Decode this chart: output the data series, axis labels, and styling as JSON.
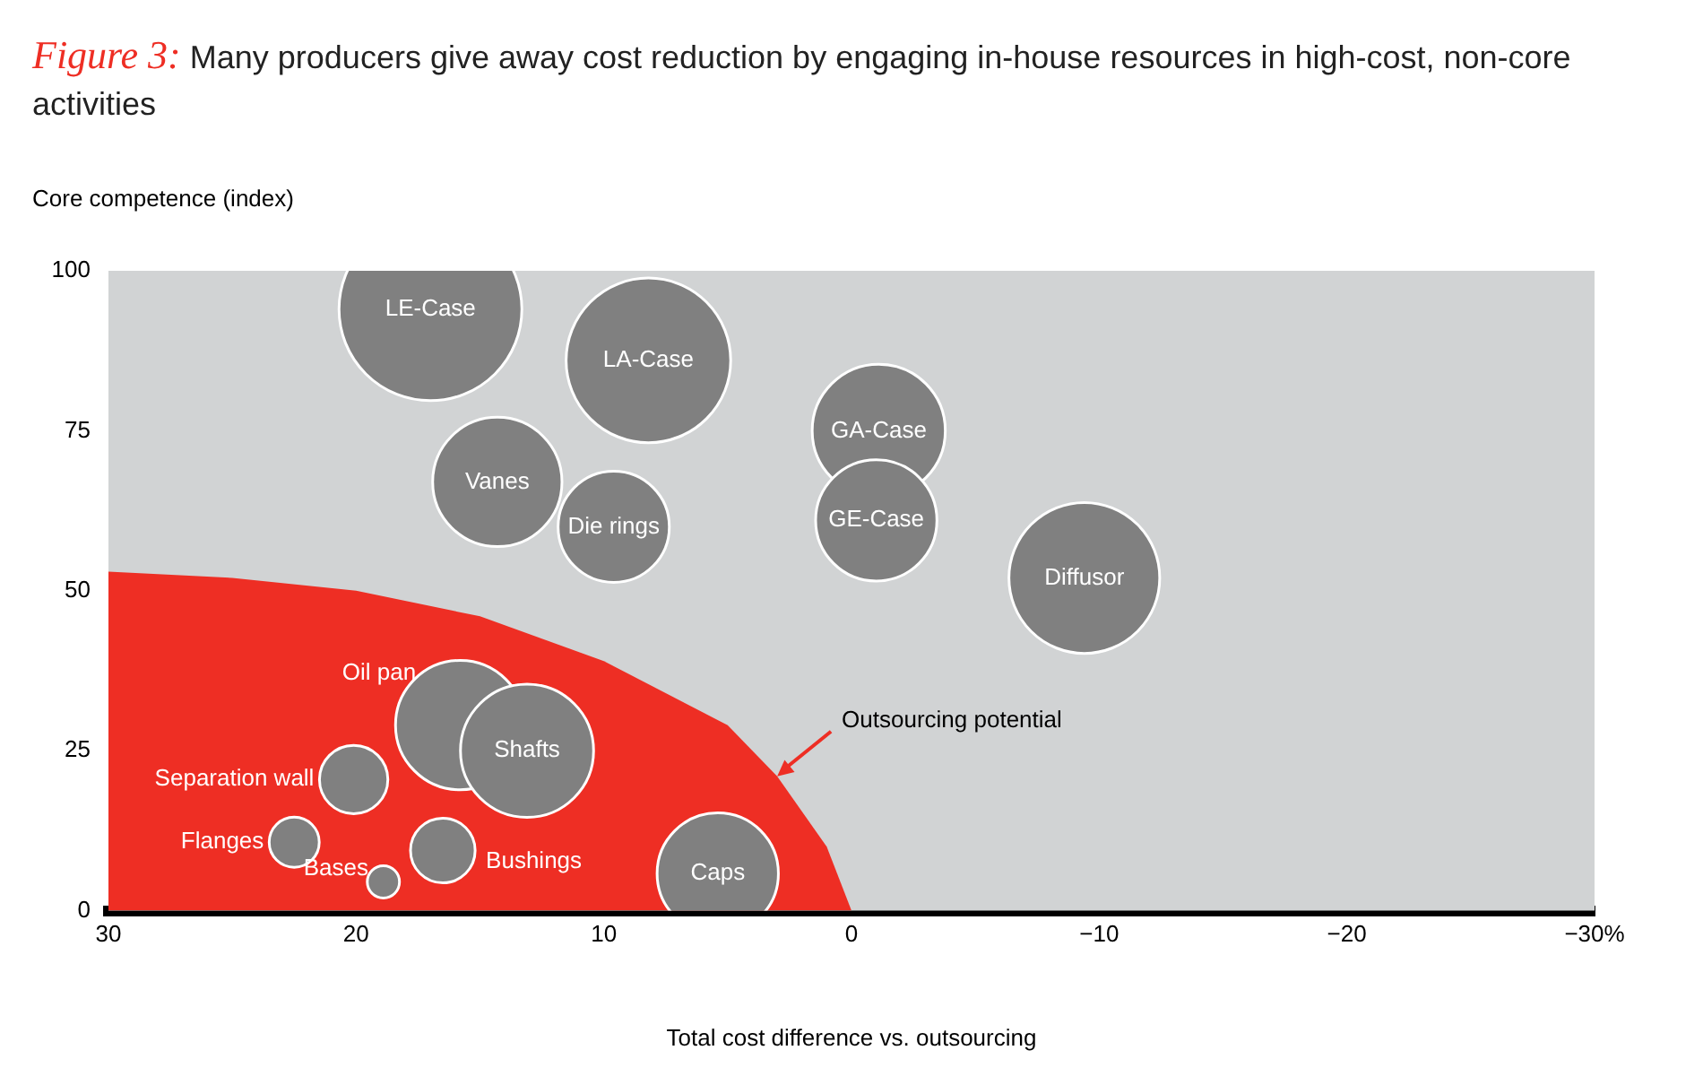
{
  "chart_data": {
    "type": "bubble",
    "title": "Figure 3: Many producers give away cost reduction by engaging in-house resources in high-cost, non-core activities",
    "xlabel": "Total cost difference vs. outsourcing",
    "ylabel": "Core competence (index)",
    "xlim": [
      30,
      -30
    ],
    "xticks": [
      30,
      20,
      10,
      0,
      {
        "value": -10,
        "label": "−10"
      },
      {
        "value": -20,
        "label": "−20"
      },
      {
        "value": -30,
        "label": "−30%"
      }
    ],
    "ylim": [
      0,
      100
    ],
    "yticks": [
      0,
      25,
      50,
      75,
      100
    ],
    "bands": [
      {
        "axis": "y",
        "from": 0,
        "to": 100,
        "color": "#d1d3d4"
      }
    ],
    "annotations": [
      {
        "text": "Outsourcing potential",
        "x": 3,
        "y": 21
      }
    ],
    "series": [
      {
        "type": "area",
        "color": "#ee2e24",
        "x": [
          30,
          25,
          20,
          15,
          10,
          5,
          3,
          1,
          0
        ],
        "values": [
          53,
          52,
          50,
          46,
          39,
          29,
          21,
          10,
          0
        ]
      },
      {
        "name": "LE-Case",
        "color": "#808080",
        "x": [
          17
        ],
        "values": [
          94
        ],
        "sizes": [
          1
        ]
      },
      {
        "name": "LA-Case",
        "color": "#808080",
        "x": [
          8.2
        ],
        "values": [
          86
        ],
        "sizes": [
          0.81
        ]
      },
      {
        "name": "Vanes",
        "color": "#808080",
        "x": [
          14.3
        ],
        "values": [
          67
        ],
        "sizes": [
          0.5
        ]
      },
      {
        "name": "Die rings",
        "color": "#808080",
        "x": [
          9.6
        ],
        "values": [
          60
        ],
        "sizes": [
          0.37
        ]
      },
      {
        "name": "GA-Case",
        "color": "#808080",
        "x": [
          -1.1
        ],
        "values": [
          75
        ],
        "sizes": [
          0.53
        ]
      },
      {
        "name": "GE-Case",
        "color": "#808080",
        "x": [
          -1
        ],
        "values": [
          61
        ],
        "sizes": [
          0.44
        ]
      },
      {
        "name": "Diffusor",
        "color": "#808080",
        "x": [
          -9.4
        ],
        "values": [
          52
        ],
        "sizes": [
          0.68
        ]
      },
      {
        "name": "Oil pan",
        "color": "#808080",
        "x": [
          15.8
        ],
        "values": [
          29
        ],
        "sizes": [
          0.5
        ]
      },
      {
        "name": "Shafts",
        "color": "#808080",
        "x": [
          13.1
        ],
        "values": [
          25
        ],
        "sizes": [
          0.53
        ]
      },
      {
        "name": "Separation wall",
        "color": "#808080",
        "x": [
          20.1
        ],
        "values": [
          20.5
        ],
        "sizes": [
          0.14
        ]
      },
      {
        "name": "Flanges",
        "color": "#808080",
        "x": [
          22.5
        ],
        "values": [
          10.7
        ],
        "sizes": [
          0.075
        ]
      },
      {
        "name": "Bases",
        "color": "#808080",
        "x": [
          18.9
        ],
        "values": [
          4.5
        ],
        "sizes": [
          0.031
        ]
      },
      {
        "name": "Bushings",
        "color": "#808080",
        "x": [
          16.5
        ],
        "values": [
          9.4
        ],
        "sizes": [
          0.125
        ]
      },
      {
        "name": "Caps",
        "color": "#808080",
        "x": [
          5.4
        ],
        "values": [
          5.8
        ],
        "sizes": [
          0.44
        ]
      }
    ]
  }
}
